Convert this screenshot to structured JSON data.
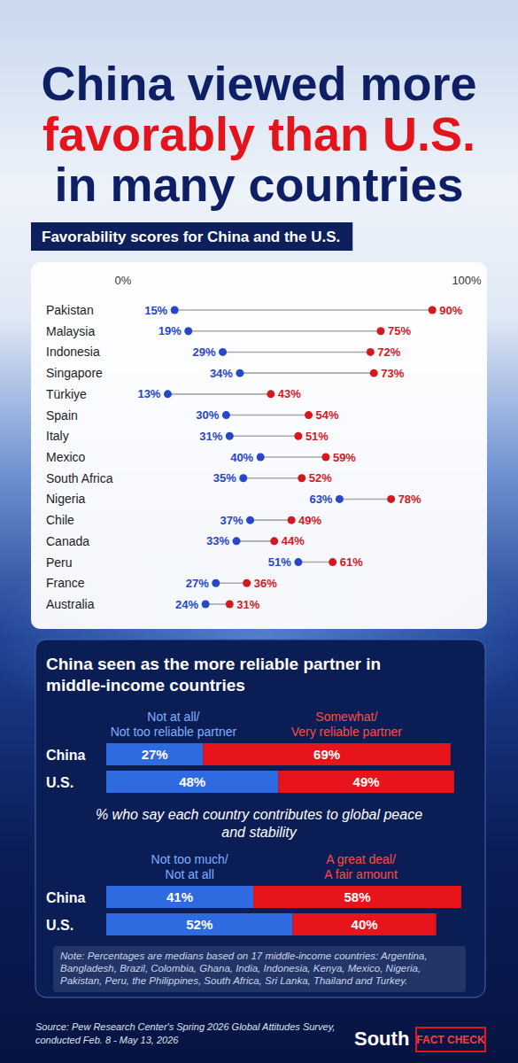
{
  "header": {
    "title": [
      "China viewed more",
      "favorably than U.S.",
      "in many countries"
    ]
  },
  "chart_data": [
    {
      "type": "dumbbell",
      "title": "Favorability scores for China and the U.S.",
      "orientation": "horizontal",
      "categories": [
        "Pakistan",
        "Malaysia",
        "Indonesia",
        "Singapore",
        "Türkiye",
        "Spain",
        "Italy",
        "Mexico",
        "South Africa",
        "Nigeria",
        "Chile",
        "Canada",
        "Peru",
        "France",
        "Australia"
      ],
      "series": [
        {
          "color": "#2846c8",
          "values": [
            15,
            19,
            29,
            34,
            13,
            30,
            31,
            40,
            35,
            63,
            37,
            33,
            51,
            27,
            24
          ],
          "value_labels": [
            "15%",
            "19%",
            "29%",
            "34%",
            "13%",
            "30%",
            "31%",
            "40%",
            "35%",
            "63%",
            "37%",
            "33%",
            "51%",
            "27%",
            "24%"
          ]
        },
        {
          "color": "#d4191e",
          "values": [
            90,
            75,
            72,
            73,
            43,
            54,
            51,
            59,
            52,
            78,
            49,
            44,
            61,
            36,
            31
          ],
          "value_labels": [
            "90%",
            "75%",
            "72%",
            "73%",
            "43%",
            "54%",
            "51%",
            "59%",
            "52%",
            "78%",
            "49%",
            "44%",
            "61%",
            "36%",
            "31%"
          ]
        }
      ],
      "xlim": [
        0,
        100
      ],
      "xticks": [
        {
          "value": 0,
          "label": "0%"
        },
        {
          "value": 100,
          "label": "100%"
        }
      ],
      "data_labels": true,
      "grid": false
    },
    {
      "type": "bar",
      "title": "China seen as the more reliable partner in middle-income countries",
      "orientation": "horizontal",
      "stacked": true,
      "categories": [
        "China",
        "U.S."
      ],
      "series": [
        {
          "name": "Not at all/ Not too reliable partner",
          "color": "#2f6be0",
          "values": [
            27,
            48
          ],
          "value_labels": [
            "27%",
            "48%"
          ]
        },
        {
          "name": "Somewhat/ Very reliable partner",
          "color": "#e8141b",
          "values": [
            69,
            49
          ],
          "value_labels": [
            "69%",
            "49%"
          ]
        }
      ],
      "xlim": [
        0,
        100
      ],
      "tick_labels": "y",
      "legend": "top",
      "data_labels": true
    },
    {
      "type": "bar",
      "title": "% who say each country contributes to global peace and stability",
      "orientation": "horizontal",
      "stacked": true,
      "categories": [
        "China",
        "U.S."
      ],
      "series": [
        {
          "name": "Not too much/ Not at all",
          "color": "#2f6be0",
          "values": [
            41,
            52
          ],
          "value_labels": [
            "41%",
            "52%"
          ]
        },
        {
          "name": "A great deal/ A fair amount",
          "color": "#e8141b",
          "values": [
            58,
            40
          ],
          "value_labels": [
            "58%",
            "40%"
          ]
        }
      ],
      "xlim": [
        0,
        100
      ],
      "tick_labels": "y",
      "legend": "top",
      "data_labels": true
    }
  ],
  "footer": {
    "note": "Note: Percentages are medians based on 17 middle-income countries: Argentina, Bangladesh, Brazil, Colombia, Ghana, India, Indonesia, Kenya, Mexico, Nigeria, Pakistan, Peru, the Philippines, South Africa, Sri Lanka, Thailand and Turkey.",
    "source": [
      "Source: Pew Research Center's Spring 2026 Global Attitudes Survey,",
      "conducted Feb. 8 - May 13, 2026"
    ],
    "brand": "South",
    "badge": "FACT CHECK"
  }
}
